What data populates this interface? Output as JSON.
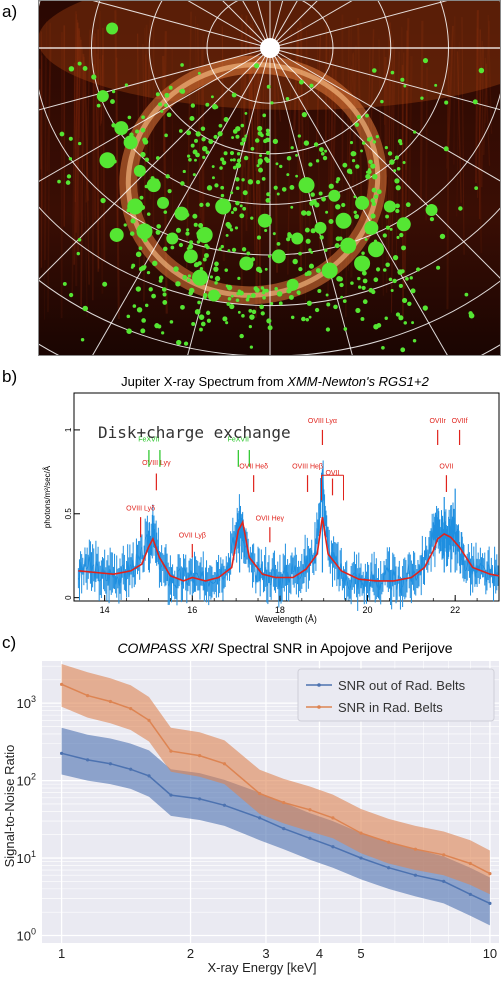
{
  "panel_labels": {
    "a": "a)",
    "b": "b)",
    "c": "c)"
  },
  "colors": {
    "auroral_bg": "#1a0502",
    "aurora_glow": "#e07a3a",
    "photon_green": "#55e633",
    "grid_white": "#ffffff",
    "spectrum_blue": "#1f8fe0",
    "model_red": "#e0231c",
    "label_green": "#23c423",
    "snr_blue": "#4c72b0",
    "snr_orange": "#dd8452",
    "plot_bg_c": "#eaeaf2"
  },
  "chart_data": [
    {
      "type": "scatter",
      "description_visible": false,
      "photon_events_large": [
        [
          0.16,
          0.08
        ],
        [
          0.18,
          0.36
        ],
        [
          0.15,
          0.45
        ],
        [
          0.22,
          0.48
        ],
        [
          0.25,
          0.52
        ],
        [
          0.21,
          0.58
        ],
        [
          0.27,
          0.57
        ],
        [
          0.31,
          0.6
        ],
        [
          0.23,
          0.65
        ],
        [
          0.29,
          0.67
        ],
        [
          0.33,
          0.72
        ],
        [
          0.35,
          0.78
        ],
        [
          0.38,
          0.83
        ],
        [
          0.45,
          0.74
        ],
        [
          0.58,
          0.52
        ],
        [
          0.64,
          0.55
        ],
        [
          0.7,
          0.57
        ],
        [
          0.66,
          0.62
        ],
        [
          0.61,
          0.64
        ],
        [
          0.72,
          0.64
        ],
        [
          0.67,
          0.69
        ],
        [
          0.76,
          0.58
        ],
        [
          0.79,
          0.63
        ],
        [
          0.73,
          0.7
        ],
        [
          0.56,
          0.67
        ],
        [
          0.52,
          0.72
        ],
        [
          0.63,
          0.76
        ],
        [
          0.85,
          0.59
        ],
        [
          0.17,
          0.66
        ],
        [
          0.4,
          0.58
        ],
        [
          0.14,
          0.27
        ],
        [
          0.2,
          0.4
        ],
        [
          0.36,
          0.66
        ],
        [
          0.55,
          0.8
        ],
        [
          0.49,
          0.62
        ],
        [
          0.7,
          0.74
        ]
      ]
    },
    {
      "type": "line",
      "title": "Jupiter X-ray Spectrum from XMM-Newton's RGS1+2",
      "title_plain": "Jupiter X-ray Spectrum from ",
      "title_italic": "XMM-Newton's RGS1+2",
      "xlabel": "Wavelength (Å)",
      "ylabel": "photons/m²/sec/Å",
      "xlim": [
        13.3,
        23.0
      ],
      "ylim": [
        -0.02,
        1.22
      ],
      "xticks": [
        14,
        16,
        18,
        20,
        22
      ],
      "yticks": [
        0,
        0.5,
        1
      ],
      "ytick_labels": [
        "0",
        "0.5",
        "1"
      ],
      "legend_text": "Disk+charge exchange",
      "model": {
        "name": "model",
        "x": [
          13.4,
          13.8,
          14.2,
          14.6,
          14.85,
          15.0,
          15.1,
          15.25,
          15.5,
          15.8,
          16.0,
          16.3,
          16.6,
          16.9,
          17.05,
          17.15,
          17.3,
          17.6,
          17.9,
          18.3,
          18.6,
          18.85,
          18.97,
          19.1,
          19.4,
          19.8,
          20.2,
          20.6,
          21.0,
          21.3,
          21.5,
          21.6,
          21.75,
          21.9,
          22.1,
          22.4,
          22.8,
          23.0
        ],
        "y": [
          0.16,
          0.15,
          0.14,
          0.16,
          0.2,
          0.3,
          0.35,
          0.24,
          0.13,
          0.1,
          0.12,
          0.1,
          0.12,
          0.18,
          0.4,
          0.45,
          0.24,
          0.14,
          0.12,
          0.12,
          0.17,
          0.26,
          0.48,
          0.26,
          0.16,
          0.11,
          0.1,
          0.1,
          0.12,
          0.18,
          0.28,
          0.35,
          0.38,
          0.36,
          0.3,
          0.18,
          0.14,
          0.13
        ]
      },
      "data": {
        "name": "data",
        "x": [
          13.4,
          13.6,
          13.8,
          14.0,
          14.2,
          14.4,
          14.6,
          14.8,
          15.0,
          15.1,
          15.2,
          15.4,
          15.6,
          15.8,
          16.0,
          16.2,
          16.4,
          16.6,
          16.8,
          17.0,
          17.1,
          17.2,
          17.4,
          17.6,
          17.8,
          18.0,
          18.2,
          18.4,
          18.6,
          18.8,
          18.97,
          19.1,
          19.3,
          19.5,
          19.7,
          19.9,
          20.1,
          20.3,
          20.5,
          20.7,
          20.9,
          21.1,
          21.3,
          21.5,
          21.6,
          21.7,
          21.8,
          21.9,
          22.0,
          22.1,
          22.2,
          22.4,
          22.6,
          22.8,
          23.0
        ],
        "y": [
          0.14,
          0.19,
          0.16,
          0.12,
          0.15,
          0.13,
          0.18,
          0.21,
          0.33,
          0.38,
          0.26,
          0.14,
          0.1,
          0.12,
          0.13,
          0.09,
          0.13,
          0.16,
          0.19,
          0.38,
          0.44,
          0.3,
          0.15,
          0.13,
          0.14,
          0.11,
          0.15,
          0.17,
          0.19,
          0.27,
          0.7,
          0.29,
          0.18,
          0.1,
          0.12,
          0.09,
          0.11,
          0.1,
          0.12,
          0.08,
          0.13,
          0.15,
          0.22,
          0.36,
          0.39,
          0.4,
          0.33,
          0.42,
          0.38,
          0.28,
          0.22,
          0.17,
          0.15,
          0.13,
          0.12
        ]
      },
      "lines": [
        {
          "label": "OVIII Lyδ",
          "x": 14.82,
          "y_top": 0.48,
          "y_bot": 0.36,
          "label_y": 0.52,
          "color": "red"
        },
        {
          "label": "OVIII Lyγ",
          "x": 15.18,
          "y_top": 0.74,
          "y_bot": 0.64,
          "label_y": 0.79,
          "color": "red"
        },
        {
          "label": "FeXVII",
          "x": 15.01,
          "y_top": 0.88,
          "y_bot": 0.78,
          "label_y": 0.93,
          "color": "green"
        },
        {
          "label": "OVII Lyβ",
          "x": 16.0,
          "y_top": 0.32,
          "y_bot": 0.24,
          "label_y": 0.36,
          "color": "red"
        },
        {
          "label": "FeXVII",
          "x": 17.05,
          "y_top": 0.88,
          "y_bot": 0.78,
          "label_y": 0.93,
          "color": "green"
        },
        {
          "label": "OVII Heδ",
          "x": 17.4,
          "y_top": 0.73,
          "y_bot": 0.63,
          "label_y": 0.77,
          "color": "red"
        },
        {
          "label": "OVII Heγ",
          "x": 17.77,
          "y_top": 0.42,
          "y_bot": 0.33,
          "label_y": 0.46,
          "color": "red"
        },
        {
          "label": "OVIII Heβ",
          "x": 18.63,
          "y_top": 0.73,
          "y_bot": 0.63,
          "label_y": 0.77,
          "color": "red"
        },
        {
          "label": "OVIII Lyα",
          "x": 18.97,
          "y_top": 1.0,
          "y_bot": 0.91,
          "label_y": 1.04,
          "color": "red"
        },
        {
          "label": "OVII",
          "x": 19.2,
          "y_top": 0.71,
          "y_bot": 0.61,
          "label_y": 0.73,
          "color": "red"
        },
        {
          "label": "OVIIr",
          "x": 21.6,
          "y_top": 1.0,
          "y_bot": 0.91,
          "label_y": 1.04,
          "color": "red"
        },
        {
          "label": "OVIIf",
          "x": 22.1,
          "y_top": 1.0,
          "y_bot": 0.91,
          "label_y": 1.04,
          "color": "red"
        },
        {
          "label": "OVII",
          "x": 21.8,
          "y_top": 0.73,
          "y_bot": 0.63,
          "label_y": 0.77,
          "color": "red"
        }
      ]
    },
    {
      "type": "line",
      "title_italic": "COMPASS XRI",
      "title_plain": " Spectral SNR in Apojove and Perijove",
      "xlabel": "X-ray Energy [keV]",
      "ylabel": "Signal-to-Noise Ratio",
      "xscale": "log",
      "yscale": "log",
      "xlim": [
        0.9,
        10.5
      ],
      "ylim": [
        0.8,
        3500
      ],
      "xticks": [
        1,
        2,
        3,
        4,
        5,
        10
      ],
      "xtick_labels": [
        "1",
        "2",
        "3",
        "4",
        "5",
        "10"
      ],
      "yticks": [
        1,
        10,
        100,
        1000
      ],
      "grid": true,
      "legend_position": "top-right",
      "x": [
        1.0,
        1.15,
        1.3,
        1.45,
        1.6,
        1.8,
        2.1,
        2.4,
        2.9,
        3.3,
        3.8,
        4.3,
        5.0,
        5.8,
        6.7,
        7.8,
        9.0,
        10.0
      ],
      "series": [
        {
          "name": "SNR out of Rad. Belts",
          "values": [
            225,
            185,
            165,
            140,
            115,
            65,
            58,
            48,
            33,
            24,
            18,
            14,
            10,
            7.5,
            6,
            5,
            3.4,
            2.6
          ],
          "lower": [
            120,
            100,
            90,
            78,
            62,
            35,
            31,
            26,
            17,
            13,
            9.5,
            7.5,
            5.3,
            4,
            3.2,
            2.6,
            1.8,
            1.35
          ],
          "upper": [
            480,
            390,
            350,
            300,
            245,
            140,
            125,
            102,
            70,
            52,
            38,
            30,
            21,
            16,
            13,
            10.5,
            7.5,
            5.6
          ]
        },
        {
          "name": "SNR in Rad. Belts",
          "values": [
            1750,
            1250,
            1050,
            850,
            600,
            240,
            210,
            165,
            68,
            52,
            42,
            33,
            21,
            16,
            13,
            11,
            8.5,
            6.3
          ],
          "lower": [
            900,
            650,
            550,
            450,
            320,
            130,
            112,
            90,
            37,
            28,
            22,
            18,
            11.5,
            8.5,
            7,
            6,
            4.5,
            3.4
          ],
          "upper": [
            3200,
            2500,
            2100,
            1700,
            1200,
            480,
            420,
            330,
            138,
            105,
            84,
            66,
            43,
            32,
            26,
            22,
            17,
            12.5
          ]
        }
      ]
    }
  ]
}
